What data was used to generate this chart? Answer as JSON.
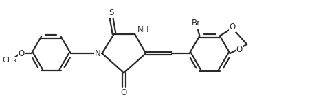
{
  "bg_color": "#ffffff",
  "line_color": "#2a2a2a",
  "line_width": 1.6,
  "text_color": "#2a2a2a",
  "font_size": 8.5,
  "xlim": [
    0,
    9.5
  ],
  "ylim": [
    0,
    3.2
  ]
}
